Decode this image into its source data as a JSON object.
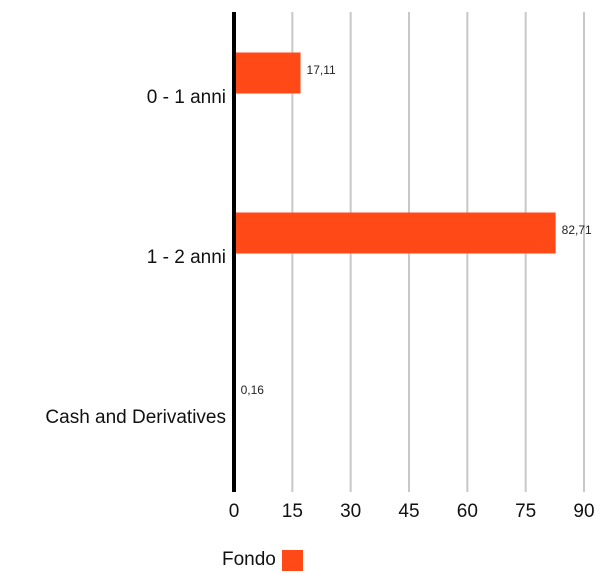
{
  "chart_data": {
    "type": "bar",
    "orientation": "horizontal",
    "categories": [
      "0 - 1 anni",
      "1 - 2 anni",
      "Cash and Derivatives"
    ],
    "series": [
      {
        "name": "Fondo",
        "values": [
          17.11,
          82.71,
          0.16
        ],
        "color": "#ff4a17"
      }
    ],
    "data_labels": [
      "17,11",
      "82,71",
      "0,16"
    ],
    "xlim": [
      0,
      90
    ],
    "xticks": [
      0,
      15,
      30,
      45,
      60,
      75,
      90
    ],
    "xtick_labels": [
      "0",
      "15",
      "30",
      "45",
      "60",
      "75",
      "90"
    ],
    "grid": true,
    "legend_position": "bottom-center"
  },
  "legend": {
    "label": "Fondo",
    "color": "#ff4a17"
  }
}
